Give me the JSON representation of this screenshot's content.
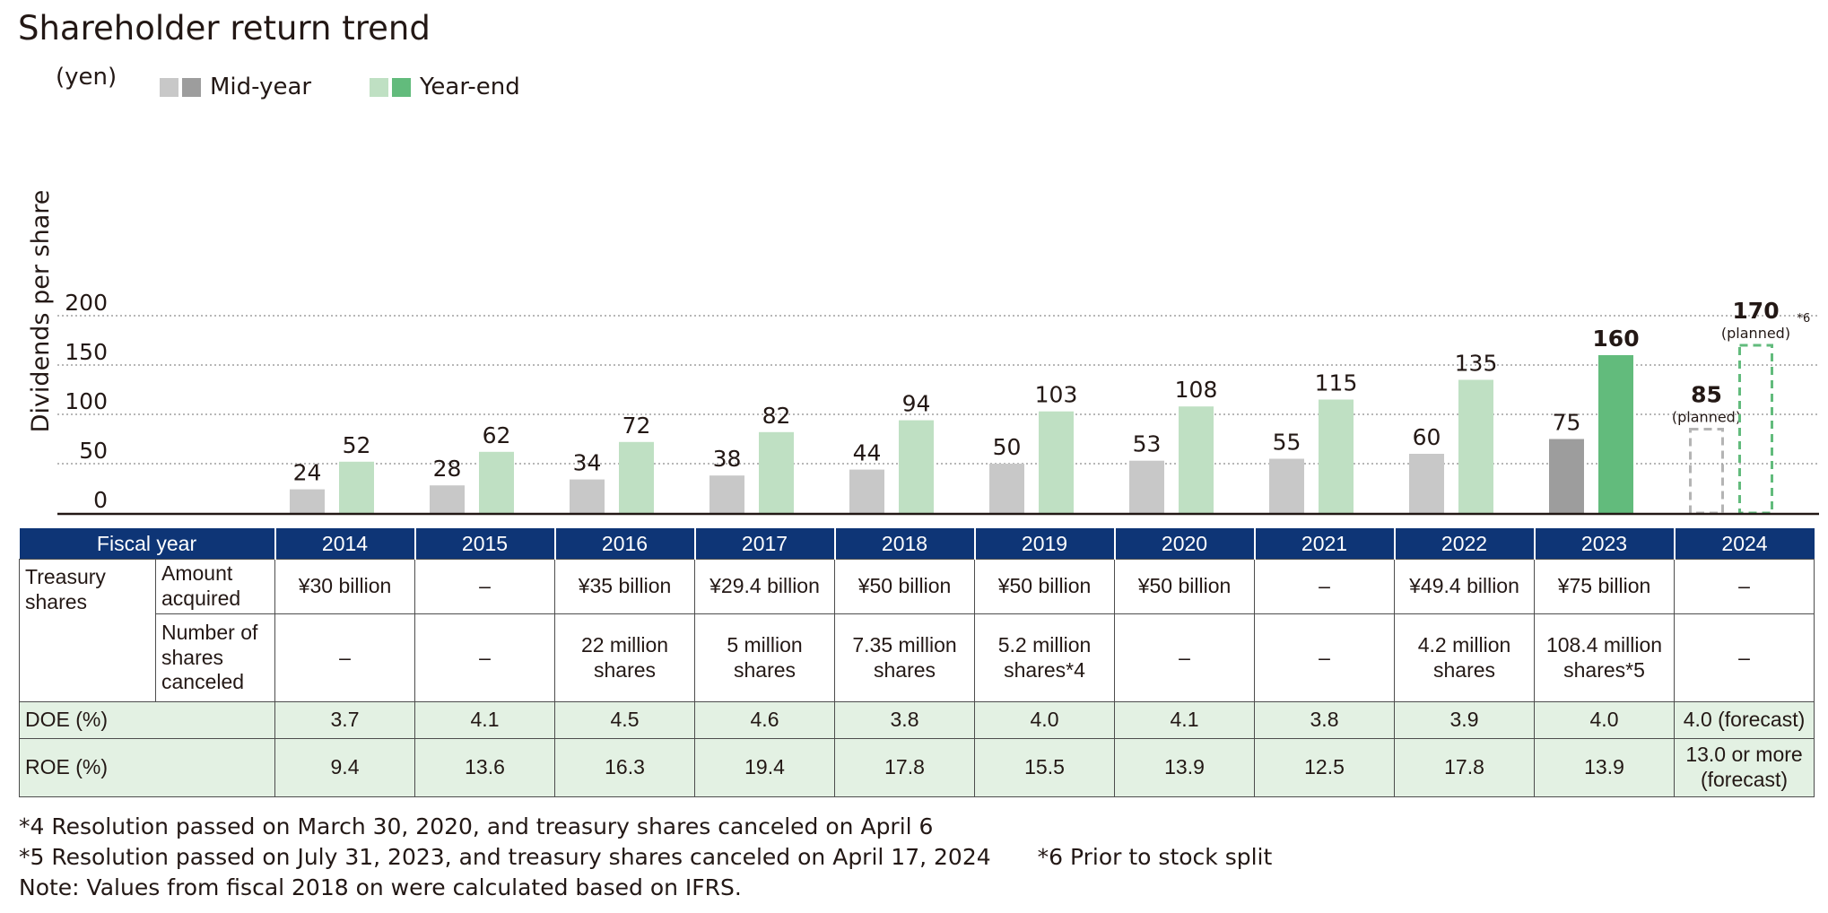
{
  "title": "Shareholder return trend",
  "colors": {
    "midyear": "#c8c8c8",
    "midyear_dark": "#9d9d9d",
    "yearend": "#bfe0c3",
    "yearend_dark": "#62bb7c",
    "header_bg": "#0e3576",
    "green_row": "#e3f1e3"
  },
  "legend": {
    "midyear": "Mid-year",
    "yearend": "Year-end"
  },
  "chart_data": {
    "type": "bar",
    "title": "Shareholder return trend",
    "ylabel": "Dividends per share",
    "yunit": "(yen)",
    "ylim": [
      0,
      200
    ],
    "yticks": [
      "0",
      "50",
      "100",
      "150",
      "200"
    ],
    "ytick_values": [
      0,
      50,
      100,
      150,
      200
    ],
    "categories": [
      "2014",
      "2015",
      "2016",
      "2017",
      "2018",
      "2019",
      "2020",
      "2021",
      "2022",
      "2023",
      "2024"
    ],
    "series": [
      {
        "name": "Mid-year",
        "values": [
          24,
          28,
          34,
          38,
          44,
          50,
          53,
          55,
          60,
          75,
          85
        ],
        "labels": [
          "24",
          "28",
          "34",
          "38",
          "44",
          "50",
          "53",
          "55",
          "60",
          "75",
          "85"
        ]
      },
      {
        "name": "Year-end",
        "values": [
          52,
          62,
          72,
          82,
          94,
          103,
          108,
          115,
          135,
          160,
          170
        ],
        "labels": [
          "52",
          "62",
          "72",
          "82",
          "94",
          "103",
          "108",
          "115",
          "135",
          "160",
          "170"
        ]
      }
    ],
    "planned_note": "(planned)",
    "footnote_mark": "*6"
  },
  "table": {
    "header_label": "Fiscal year",
    "years": [
      "2014",
      "2015",
      "2016",
      "2017",
      "2018",
      "2019",
      "2020",
      "2021",
      "2022",
      "2023",
      "2024"
    ],
    "treasury_label": "Treasury shares",
    "amount_label": "Amount acquired",
    "canceled_label": "Number of shares canceled",
    "amount_acquired": [
      "¥30 billion",
      "–",
      "¥35 billion",
      "¥29.4 billion",
      "¥50 billion",
      "¥50 billion",
      "¥50 billion",
      "–",
      "¥49.4 billion",
      "¥75 billion",
      "–"
    ],
    "shares_canceled": [
      "–",
      "–",
      "22 million shares",
      "5 million shares",
      "7.35 million shares",
      "5.2 million shares*4",
      "–",
      "–",
      "4.2 million shares",
      "108.4 million shares*5",
      "–"
    ],
    "doe_label": "DOE (%)",
    "doe": [
      "3.7",
      "4.1",
      "4.5",
      "4.6",
      "3.8",
      "4.0",
      "4.1",
      "3.8",
      "3.9",
      "4.0",
      "4.0 (forecast)"
    ],
    "roe_label": "ROE (%)",
    "roe": [
      "9.4",
      "13.6",
      "16.3",
      "19.4",
      "17.8",
      "15.5",
      "13.9",
      "12.5",
      "17.8",
      "13.9",
      "13.0 or more (forecast)"
    ]
  },
  "notes": {
    "n4": "*4 Resolution passed on March 30, 2020, and treasury shares canceled on April 6",
    "n5": "*5 Resolution passed on July 31, 2023, and treasury shares canceled on April 17, 2024",
    "n6": "*6 Prior to stock split",
    "note": "Note: Values from fiscal 2018 on were calculated based on IFRS."
  }
}
